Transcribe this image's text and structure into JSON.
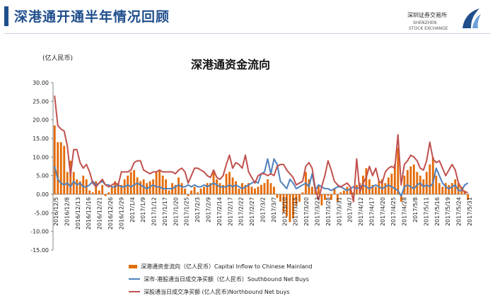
{
  "header": {
    "title": "深港通开通半年情况回顾",
    "logo_cn": "深圳证券交易所",
    "logo_en1": "SHENZHEN",
    "logo_en2": "STOCK EXCHANGE"
  },
  "colors": {
    "header": "#1f4e8c",
    "bar": "#e46c0a",
    "southbound": "#4f81bd",
    "northbound": "#c0504d"
  },
  "chart_data": {
    "type": "bar+line",
    "title": "深港通资金流向",
    "unit_label": "(亿人民币)",
    "ylim": [
      -15,
      30
    ],
    "yticks": [
      "30.00",
      "25.00",
      "20.00",
      "15.00",
      "10.00",
      "5.00",
      "0.00",
      "-5.00",
      "-10.00",
      "-15.00"
    ],
    "x_ticks": [
      "2016/12/5",
      "2016/12/8",
      "2016/12/13",
      "2016/12/16",
      "2016/12/21",
      "2016/12/26",
      "2016/12/29",
      "2017/1/4",
      "2017/1/9",
      "2017/1/12",
      "2017/1/17",
      "2017/1/20",
      "2017/1/25",
      "2017/2/3",
      "2017/2/9",
      "2017/2/14",
      "2017/2/17",
      "2017/2/22",
      "2017/2/27",
      "2017/3/2",
      "2017/3/7",
      "2017/3/10",
      "2017/3/15",
      "2017/3/20",
      "2017/3/23",
      "2017/3/28",
      "2017/3/31",
      "2017/4/7",
      "2017/4/12",
      "2017/4/17",
      "2017/4/20",
      "2017/4/25",
      "2017/4/28",
      "2017/5/8",
      "2017/5/11",
      "2017/5/16",
      "2017/5/19",
      "2017/5/24",
      "2017/5/31"
    ],
    "series": [
      {
        "name": "深港通资金流向（亿人民币）Capital Inflow to Chinese Mainland",
        "kind": "bar",
        "values": [
          18.5,
          14.0,
          14.0,
          13.0,
          6.0,
          9.0,
          6.0,
          4.0,
          3.5,
          5.0,
          4.0,
          1.0,
          0.5,
          3.5,
          1.0,
          2.5,
          -0.5,
          0.5,
          2.0,
          3.5,
          3.0,
          2.5,
          4.0,
          5.0,
          6.0,
          6.5,
          4.5,
          3.5,
          4.0,
          3.0,
          3.5,
          4.0,
          6.0,
          6.5,
          5.0,
          4.0,
          1.0,
          3.0,
          2.5,
          4.5,
          3.0,
          1.5,
          -0.5,
          1.0,
          2.0,
          0.5,
          1.5,
          2.0,
          3.0,
          3.0,
          6.5,
          4.0,
          3.0,
          2.5,
          5.5,
          6.0,
          4.5,
          3.5,
          1.5,
          3.0,
          2.5,
          3.0,
          2.0,
          1.5,
          2.0,
          2.5,
          3.0,
          4.0,
          3.0,
          2.0,
          -1.0,
          -2.0,
          -5.0,
          -6.0,
          -7.5,
          -6.5,
          -3.0,
          -2.0,
          0.5,
          6.0,
          4.0,
          2.0,
          1.5,
          2.5,
          -3.0,
          -1.5,
          -0.5,
          -1.5,
          1.5,
          -2.0,
          0.5,
          1.0,
          2.0,
          1.5,
          0.5,
          2.5,
          3.0,
          5.0,
          7.0,
          4.0,
          2.5,
          2.0,
          3.5,
          4.0,
          3.0,
          4.5,
          5.5,
          8.0,
          12.5,
          -2.0,
          5.0,
          6.5,
          7.5,
          8.0,
          6.0,
          5.0,
          4.0,
          6.0,
          8.0,
          10.0,
          5.0,
          3.0,
          2.0,
          3.0,
          2.5,
          3.0,
          4.0,
          3.0,
          2.0,
          1.0,
          -1.5
        ],
        "note": "bar values estimated; continuous series sampled approx 130 trading days"
      },
      {
        "name": "深市-港股通当日成交净买额（亿人民币）Southbound Net Buys",
        "kind": "line",
        "values": [
          7.5,
          4.0,
          3.0,
          2.5,
          3.0,
          2.0,
          3.5,
          2.5,
          3.0,
          2.0,
          2.0,
          2.5,
          3.5,
          2.5,
          3.0,
          3.5,
          2.5,
          2.5,
          2.0,
          2.0,
          2.5,
          2.0,
          2.0,
          2.5,
          2.0,
          2.5,
          3.0,
          2.5,
          2.0,
          1.5,
          2.0,
          2.5,
          2.0,
          2.0,
          1.5,
          1.5,
          1.5,
          1.5,
          2.0,
          2.5,
          2.0,
          2.0,
          2.5,
          2.0,
          2.5,
          2.0,
          2.0,
          2.5,
          2.0,
          2.5,
          3.0,
          2.5,
          2.0,
          2.0,
          2.0,
          2.5,
          2.0,
          2.5,
          2.0,
          1.5,
          2.0,
          2.5,
          3.0,
          3.5,
          3.0,
          5.5,
          6.0,
          9.5,
          5.5,
          9.5,
          8.0,
          3.5,
          2.5,
          1.5,
          4.0,
          3.0,
          1.5,
          2.0,
          2.5,
          3.0,
          2.0,
          5.5,
          1.0,
          2.5,
          2.0,
          1.5,
          1.5,
          1.0,
          1.5,
          2.0,
          2.0,
          1.5,
          1.0,
          1.5,
          2.0,
          1.5,
          2.0,
          2.5,
          2.0,
          1.5,
          2.0,
          2.5,
          2.0,
          1.5,
          2.0,
          2.5,
          2.0,
          1.5,
          1.0,
          -0.5,
          2.0,
          2.5,
          2.0,
          1.5,
          2.5,
          3.0,
          2.0,
          2.5,
          2.0,
          3.0,
          7.0,
          5.0,
          3.0,
          2.0,
          1.5,
          2.0,
          2.5,
          1.0,
          1.0,
          2.5,
          3.0
        ]
      },
      {
        "name": "深股通当日成交净买额 (亿人民币)Northbound Net buys",
        "kind": "line",
        "values": [
          26.5,
          18.5,
          17.5,
          17.0,
          13.0,
          5.0,
          12.0,
          12.0,
          8.5,
          7.0,
          8.0,
          6.0,
          3.0,
          2.0,
          3.0,
          4.0,
          2.5,
          2.0,
          2.5,
          3.0,
          2.5,
          6.0,
          6.0,
          6.0,
          6.5,
          8.5,
          9.0,
          9.0,
          6.5,
          6.0,
          5.5,
          6.0,
          6.0,
          6.5,
          6.0,
          6.0,
          6.0,
          6.0,
          5.5,
          6.5,
          7.0,
          6.0,
          3.0,
          5.0,
          7.0,
          7.0,
          6.5,
          6.0,
          5.0,
          4.5,
          6.5,
          4.5,
          4.0,
          5.0,
          8.0,
          10.5,
          7.0,
          8.5,
          8.0,
          7.0,
          10.5,
          6.0,
          4.5,
          3.0,
          5.0,
          5.5,
          5.5,
          5.0,
          5.5,
          5.0,
          7.5,
          8.0,
          8.0,
          6.5,
          5.5,
          4.5,
          2.5,
          3.0,
          3.5,
          7.5,
          8.5,
          7.0,
          1.5,
          -1.5,
          2.0,
          5.0,
          9.0,
          6.5,
          3.5,
          2.5,
          2.0,
          2.5,
          3.0,
          2.0,
          -2.0,
          9.5,
          0.5,
          3.0,
          4.5,
          7.5,
          5.0,
          7.0,
          3.5,
          3.0,
          6.0,
          7.0,
          7.5,
          7.0,
          16.0,
          2.5,
          8.0,
          9.0,
          10.5,
          10.0,
          9.0,
          7.0,
          6.5,
          9.0,
          14.0,
          9.5,
          8.5,
          9.0,
          7.0,
          5.0,
          6.5,
          8.0,
          6.5,
          3.0,
          1.5,
          0.5,
          0.5
        ]
      }
    ],
    "legend_position": "bottom-left"
  }
}
